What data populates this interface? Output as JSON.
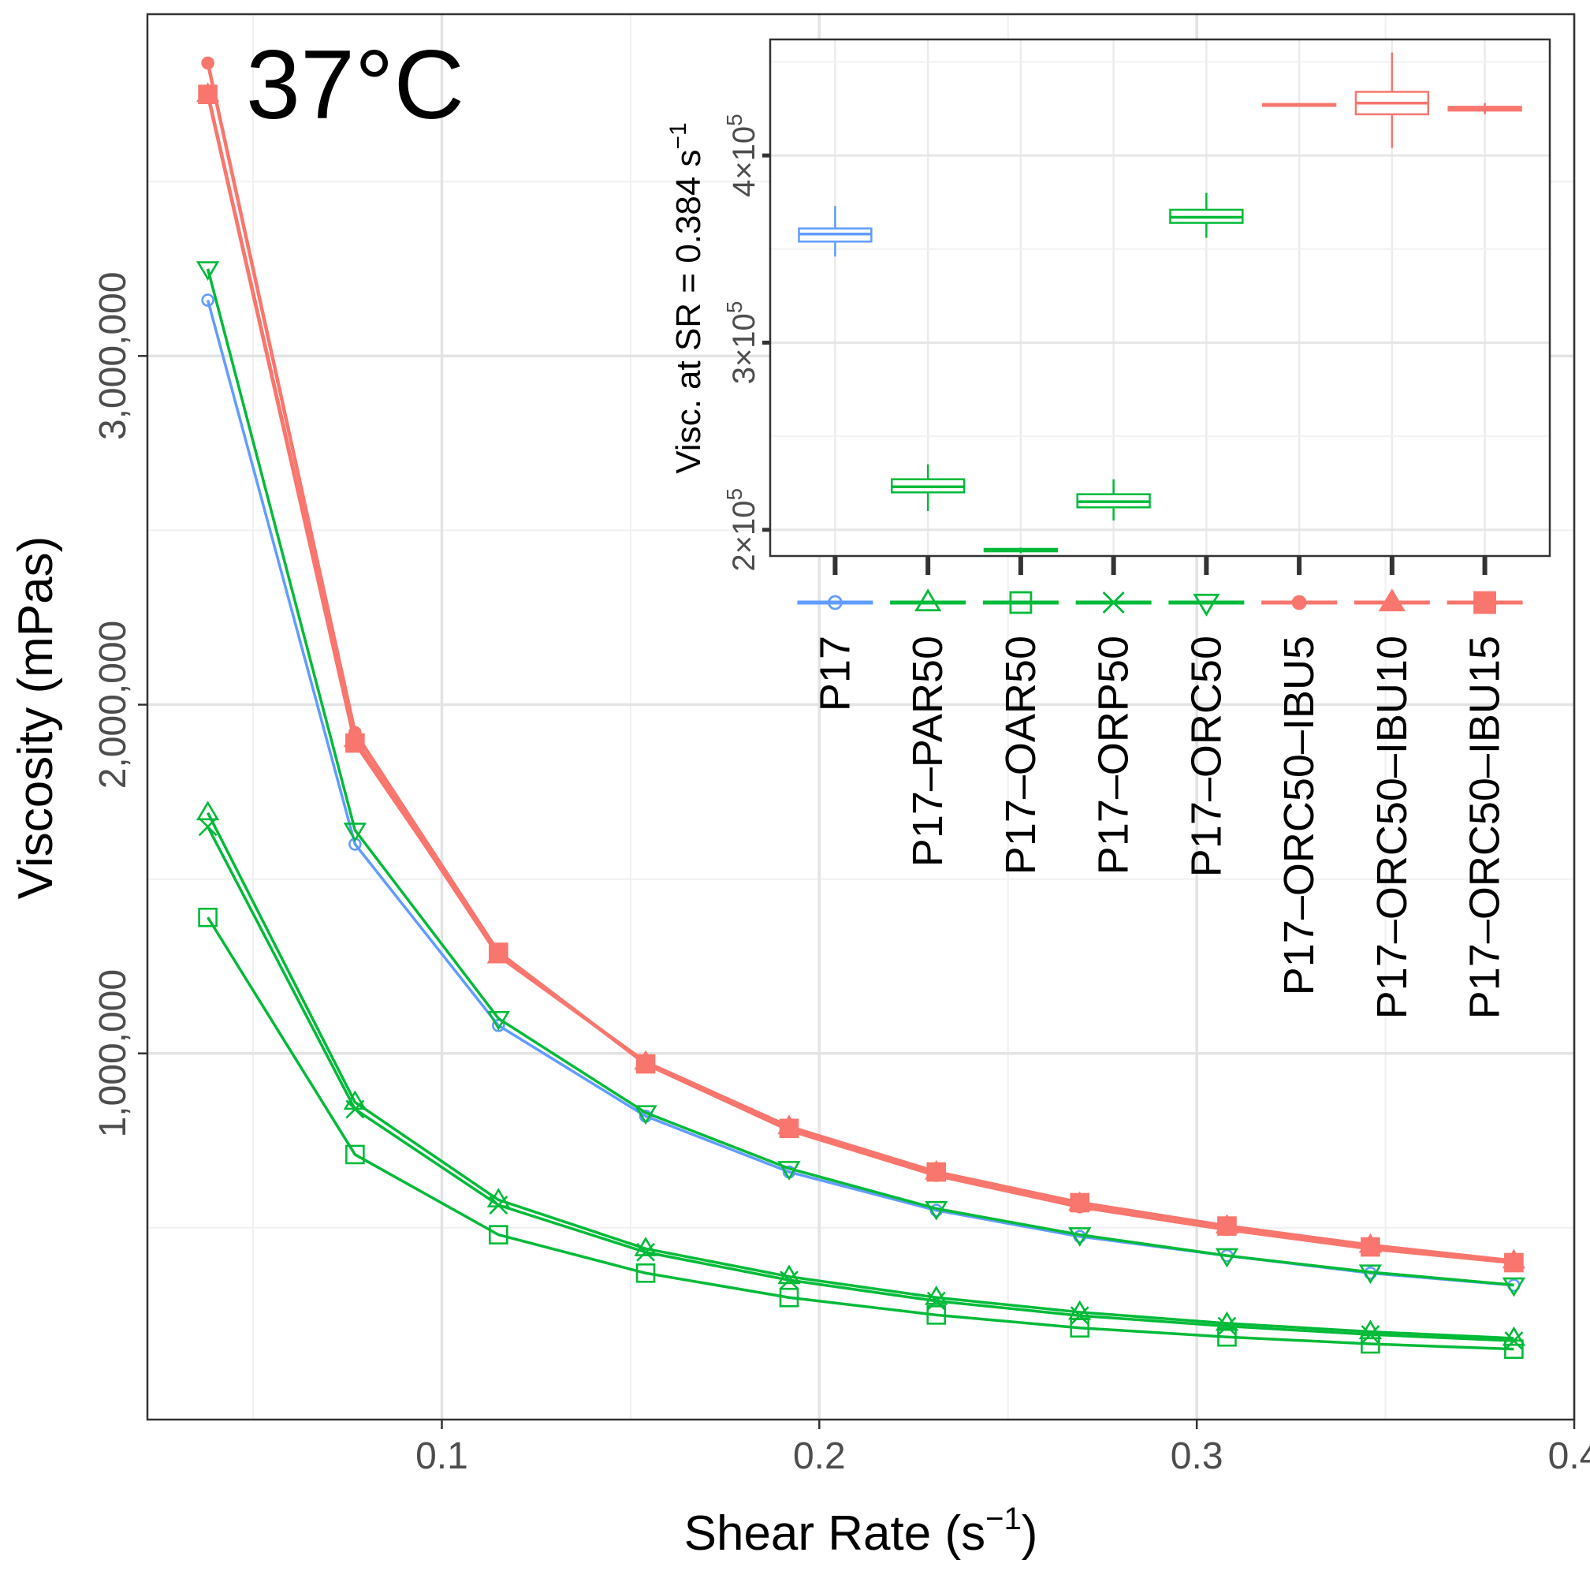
{
  "chart_data": [
    {
      "type": "line",
      "annotation": "37°C",
      "xlabel_main": "Shear Rate (s",
      "xlabel_sup": "−1",
      "xlabel_close": ")",
      "ylabel": "Viscosity (mPas)",
      "xlim": [
        0.022,
        0.4
      ],
      "ylim": [
        -50000,
        3980000
      ],
      "x_ticks": [
        0.1,
        0.2,
        0.3,
        0.4
      ],
      "x_tick_labels": [
        "0.1",
        "0.2",
        "0.3",
        "0.4"
      ],
      "y_ticks": [
        1000000,
        2000000,
        3000000
      ],
      "y_tick_labels": [
        "1,000,000",
        "2,000,000",
        "3,000,000"
      ],
      "grid": true,
      "legend": "inset top-right",
      "x": [
        0.038,
        0.077,
        0.115,
        0.154,
        0.192,
        0.231,
        0.269,
        0.308,
        0.346,
        0.384
      ],
      "series": [
        {
          "name": "P17",
          "color": "#619CFF",
          "marker": "circle",
          "values": [
            3160000,
            1600000,
            1080000,
            820000,
            660000,
            550000,
            475000,
            420000,
            370000,
            335000
          ]
        },
        {
          "name": "P17–PAR50",
          "color": "#00BA38",
          "marker": "triangle-up",
          "values": [
            1690000,
            860000,
            580000,
            440000,
            360000,
            300000,
            258000,
            226000,
            202000,
            183000
          ]
        },
        {
          "name": "P17–OAR50",
          "color": "#00BA38",
          "marker": "square",
          "values": [
            1390000,
            710000,
            480000,
            370000,
            300000,
            250000,
            213000,
            187000,
            167000,
            152000
          ]
        },
        {
          "name": "P17–ORP50",
          "color": "#00BA38",
          "marker": "x",
          "values": [
            1650000,
            840000,
            565000,
            430000,
            350000,
            290000,
            248000,
            218000,
            194000,
            176000
          ]
        },
        {
          "name": "P17–ORC50",
          "color": "#00BA38",
          "marker": "triangle-down",
          "values": [
            3250000,
            1640000,
            1100000,
            830000,
            670000,
            555000,
            480000,
            420000,
            373000,
            336000
          ]
        },
        {
          "name": "P17–ORC50–IBU5",
          "color": "#F8766D",
          "marker": "filled-circle",
          "values": [
            3840000,
            1920000,
            1290000,
            970000,
            780000,
            650000,
            560000,
            495000,
            440000,
            400000
          ]
        },
        {
          "name": "P17–ORC50–IBU10",
          "color": "#F8766D",
          "marker": "filled-triangle",
          "values": [
            3750000,
            1900000,
            1280000,
            975000,
            790000,
            660000,
            570000,
            505000,
            450000,
            405000
          ]
        },
        {
          "name": "P17–ORC50–IBU15",
          "color": "#F8766D",
          "marker": "filled-square",
          "values": [
            3750000,
            1890000,
            1290000,
            970000,
            785000,
            660000,
            572000,
            505000,
            445000,
            400000
          ]
        }
      ]
    },
    {
      "type": "box",
      "ylabel": "Visc. at SR = 0.384 s",
      "ylabel_sup": "−1",
      "ylim": [
        186000,
        462000
      ],
      "y_ticks": [
        200000,
        300000,
        400000
      ],
      "y_tick_mant": [
        "2×10",
        "3×10",
        "4×10"
      ],
      "y_tick_exp": [
        "5",
        "5",
        "5"
      ],
      "grid": true,
      "categories": [
        "P17",
        "P17–PAR50",
        "P17–OAR50",
        "P17–ORP50",
        "P17–ORC50",
        "P17–ORC50–IBU5",
        "P17–ORC50–IBU10",
        "P17–ORC50–IBU15"
      ],
      "boxes": [
        {
          "group": "P17",
          "color": "#619CFF",
          "marker": "circle",
          "min": 346000,
          "q1": 354000,
          "median": 358000,
          "q3": 361000,
          "max": 373000
        },
        {
          "group": "P17–PAR50",
          "color": "#00BA38",
          "marker": "triangle-up",
          "min": 210000,
          "q1": 220000,
          "median": 223000,
          "q3": 227000,
          "max": 235000
        },
        {
          "group": "P17–OAR50",
          "color": "#00BA38",
          "marker": "square",
          "min": 187500,
          "q1": 188500,
          "median": 189000,
          "q3": 189800,
          "max": 190500
        },
        {
          "group": "P17–ORP50",
          "color": "#00BA38",
          "marker": "x",
          "min": 205000,
          "q1": 212000,
          "median": 215000,
          "q3": 219000,
          "max": 227000
        },
        {
          "group": "P17–ORC50",
          "color": "#00BA38",
          "marker": "triangle-down",
          "min": 356000,
          "q1": 364000,
          "median": 367000,
          "q3": 371000,
          "max": 380000
        },
        {
          "group": "P17–ORC50–IBU5",
          "color": "#F8766D",
          "marker": "filled-circle",
          "min": 426000,
          "q1": 426500,
          "median": 427000,
          "q3": 427500,
          "max": 428000
        },
        {
          "group": "P17–ORC50–IBU10",
          "color": "#F8766D",
          "marker": "filled-triangle",
          "min": 404000,
          "q1": 422000,
          "median": 428000,
          "q3": 434000,
          "max": 455000
        },
        {
          "group": "P17–ORC50–IBU15",
          "color": "#F8766D",
          "marker": "filled-square",
          "min": 422000,
          "q1": 424000,
          "median": 425000,
          "q3": 426000,
          "max": 428000
        }
      ]
    }
  ]
}
